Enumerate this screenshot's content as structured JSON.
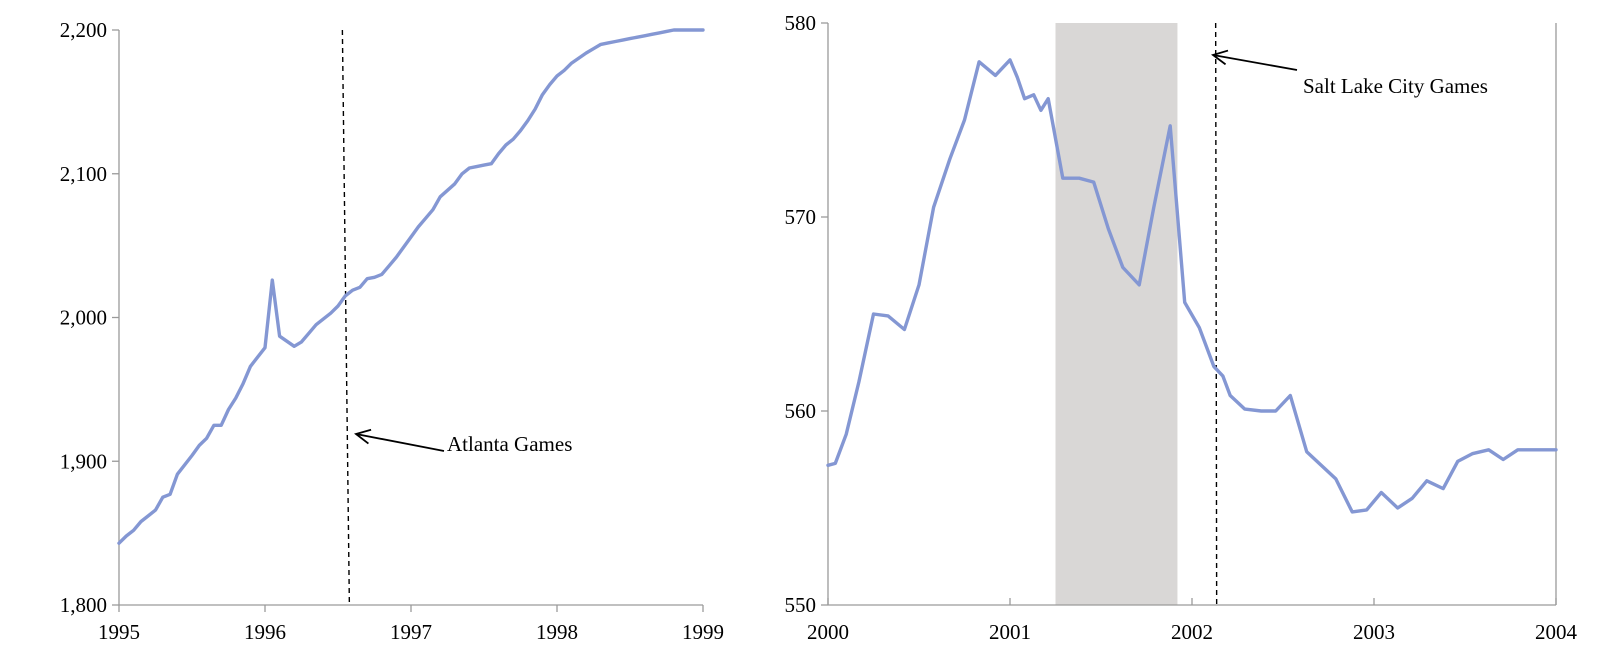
{
  "colors": {
    "series": "#8497d3",
    "shade": "#d9d7d6",
    "axis": "#9a9a9a",
    "text": "#000000"
  },
  "chart_data": [
    {
      "type": "line",
      "title": "",
      "xlabel": "",
      "ylabel": "",
      "xlim": [
        1995,
        1999
      ],
      "ylim": [
        1800,
        2200
      ],
      "x_ticks": [
        1995,
        1996,
        1997,
        1998,
        1999
      ],
      "x_tick_labels": [
        "1995",
        "1996",
        "1997",
        "1998",
        "1999"
      ],
      "y_ticks": [
        1800,
        1900,
        2000,
        2100,
        2200
      ],
      "y_tick_labels": [
        "1,800",
        "1,900",
        "2,000",
        "2,100",
        "2,200"
      ],
      "grid": false,
      "series": [
        {
          "x": [
            1995.0,
            1995.05,
            1995.1,
            1995.15,
            1995.2,
            1995.25,
            1995.3,
            1995.35,
            1995.4,
            1995.5,
            1995.55,
            1995.6,
            1995.65,
            1995.7,
            1995.75,
            1995.8,
            1995.85,
            1995.9,
            1996.0,
            1996.05,
            1996.1,
            1996.2,
            1996.25,
            1996.3,
            1996.35,
            1996.4,
            1996.45,
            1996.5,
            1996.55,
            1996.6,
            1996.65,
            1996.7,
            1996.75,
            1996.8,
            1996.85,
            1996.9,
            1997.0,
            1997.05,
            1997.1,
            1997.15,
            1997.2,
            1997.3,
            1997.35,
            1997.4,
            1997.45,
            1997.5,
            1997.55,
            1997.6,
            1997.65,
            1997.7,
            1997.75,
            1997.8,
            1997.85,
            1997.9,
            1997.95,
            1998.0,
            1998.05,
            1998.1,
            1998.2,
            1998.25,
            1998.3,
            1998.35,
            1998.4,
            1998.45,
            1998.5,
            1998.55,
            1998.6,
            1998.65,
            1998.7,
            1998.75,
            1998.8,
            1998.85,
            1998.9,
            1998.95,
            1999.0
          ],
          "y": [
            1843,
            1848,
            1852,
            1858,
            1862,
            1866,
            1875,
            1877,
            1891,
            1904,
            1911,
            1916,
            1925,
            1925,
            1936,
            1944,
            1954,
            1966,
            1979,
            2026,
            1987,
            1980,
            1983,
            1989,
            1995,
            1999,
            2003,
            2008,
            2015,
            2019,
            2021,
            2027,
            2028,
            2030,
            2036,
            2042,
            2056,
            2063,
            2069,
            2075,
            2084,
            2093,
            2100,
            2104,
            2105,
            2106,
            2107,
            2114,
            2120,
            2124,
            2130,
            2137,
            2145,
            2155,
            2162,
            2168,
            2172,
            2177,
            2184,
            2187,
            2190,
            2191,
            2192,
            2193,
            2194,
            2195,
            2196,
            2197,
            2198,
            2199,
            2200,
            2200,
            2200,
            2200,
            2200
          ]
        }
      ],
      "event_marker": {
        "x": 1996.53,
        "label": "Atlanta Games"
      }
    },
    {
      "type": "line",
      "title": "",
      "xlabel": "",
      "ylabel": "",
      "xlim": [
        2000,
        2004
      ],
      "ylim": [
        550,
        580
      ],
      "x_ticks": [
        2000,
        2001,
        2002,
        2003,
        2004
      ],
      "x_tick_labels": [
        "2000",
        "2001",
        "2002",
        "2003",
        "2004"
      ],
      "y_ticks": [
        550,
        560,
        570,
        580
      ],
      "y_tick_labels": [
        "550",
        "560",
        "570",
        "580"
      ],
      "grid": false,
      "shaded_region": [
        2001.25,
        2001.92
      ],
      "series": [
        {
          "x": [
            2000.0,
            2000.04,
            2000.1,
            2000.17,
            2000.25,
            2000.33,
            2000.42,
            2000.5,
            2000.58,
            2000.67,
            2000.75,
            2000.83,
            2000.92,
            2001.0,
            2001.04,
            2001.08,
            2001.13,
            2001.17,
            2001.21,
            2001.29,
            2001.38,
            2001.46,
            2001.54,
            2001.62,
            2001.71,
            2001.79,
            2001.88,
            2001.96,
            2002.04,
            2002.12,
            2002.17,
            2002.21,
            2002.29,
            2002.38,
            2002.46,
            2002.54,
            2002.63,
            2002.79,
            2002.88,
            2002.96,
            2003.04,
            2003.13,
            2003.21,
            2003.29,
            2003.38,
            2003.46,
            2003.54,
            2003.63,
            2003.71,
            2003.79,
            2003.88,
            2003.96,
            2004.0
          ],
          "y": [
            557.2,
            557.3,
            558.8,
            561.5,
            565.0,
            564.9,
            564.2,
            566.5,
            570.5,
            573.0,
            575.0,
            578.0,
            577.3,
            578.1,
            577.2,
            576.1,
            576.3,
            575.5,
            576.1,
            572.0,
            572.0,
            571.8,
            569.4,
            567.4,
            566.5,
            570.5,
            574.7,
            565.6,
            564.3,
            562.3,
            561.8,
            560.8,
            560.1,
            560.0,
            560.0,
            560.8,
            557.9,
            556.5,
            554.8,
            554.9,
            555.8,
            555.0,
            555.5,
            556.4,
            556.0,
            557.4,
            557.8,
            558.0,
            557.5,
            558.0,
            558.0,
            558.0,
            558.0
          ]
        }
      ],
      "event_marker": {
        "x": 2002.13,
        "label": "Salt Lake City Games"
      }
    }
  ]
}
